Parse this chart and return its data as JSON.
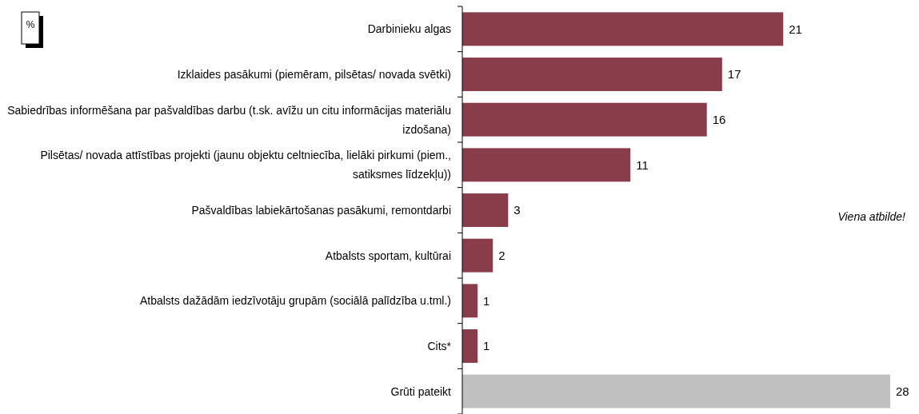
{
  "chart_data": {
    "type": "bar",
    "orientation": "horizontal",
    "categories": [
      "Darbinieku algas",
      "Izklaides pasākumi (piemēram, pilsētas/ novada svētki)",
      "Sabiedrības informēšana par pašvaldības darbu (t.sk. avīžu un citu informācijas materiālu izdošana)",
      "Pilsētas/ novada attīstības projekti (jaunu objektu celtniecība, lielāki pirkumi (piem., satiksmes līdzekļu))",
      "Pašvaldības labiekārtošanas pasākumi, remontdarbi",
      "Atbalsts sportam, kultūrai",
      "Atbalsts dažādām iedzīvotāju grupām (sociālā palīdzība u.tml.)",
      "Cits*",
      "Grūti pateikt"
    ],
    "values": [
      21,
      17,
      16,
      11,
      3,
      2,
      1,
      1,
      28
    ],
    "colors": [
      "#893c4a",
      "#893c4a",
      "#893c4a",
      "#893c4a",
      "#893c4a",
      "#893c4a",
      "#893c4a",
      "#893c4a",
      "#c0c0c0"
    ],
    "data_labels": true,
    "annotations": [
      "%",
      "Viena atbilde!"
    ]
  }
}
